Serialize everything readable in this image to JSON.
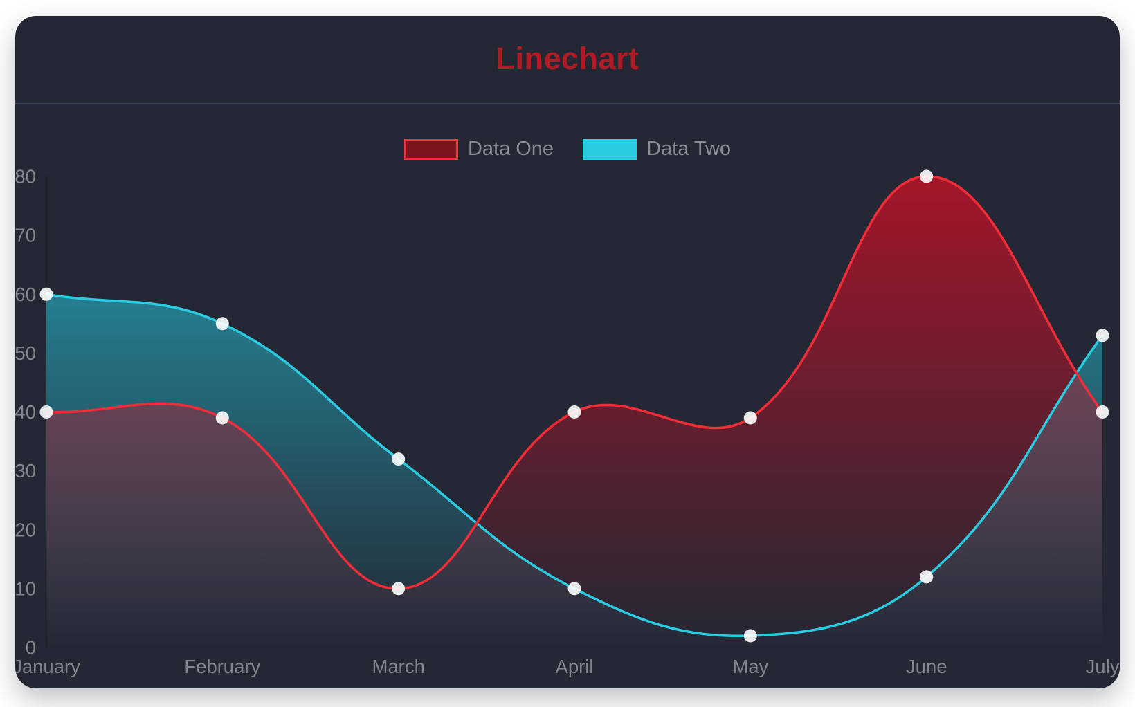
{
  "page": {
    "background": "#ffffff"
  },
  "card": {
    "background": "#232834",
    "divider_color": "#3c4257"
  },
  "title": {
    "text": "Linechart",
    "color": "#b01c25"
  },
  "legend": [
    {
      "label": "Data One",
      "swatch_fill": "#7c151d",
      "swatch_border": "#f23540"
    },
    {
      "label": "Data Two",
      "swatch_fill": "#2bcce2",
      "swatch_border": "#2bcce2"
    }
  ],
  "chart_data": {
    "type": "line",
    "title": "Linechart",
    "categories": [
      "January",
      "February",
      "March",
      "April",
      "May",
      "June",
      "July"
    ],
    "series": [
      {
        "name": "Data One",
        "values": [
          40,
          39,
          10,
          40,
          39,
          80,
          40
        ],
        "line_color": "#f22d38",
        "fill_top": "rgba(200, 16, 38, 0.78)",
        "fill_bottom": "rgba(200, 16, 38, 0)"
      },
      {
        "name": "Data Two",
        "values": [
          60,
          55,
          32,
          10,
          2,
          12,
          53
        ],
        "line_color": "#2bcce2",
        "fill_top": "rgba(38, 200, 222, 0.72)",
        "fill_bottom": "rgba(38, 200, 222, 0)"
      }
    ],
    "xlabel": "",
    "ylabel": "",
    "ylim": [
      0,
      80
    ],
    "y_ticks": [
      0,
      10,
      20,
      30,
      40,
      50,
      60,
      70,
      80
    ],
    "grid": false,
    "legend_position": "top",
    "curve_tension": 0.4,
    "point_color": "rgba(255,255,255,0.9)",
    "point_radius": 9.5,
    "line_width": 3.5,
    "axis_label_color": "#83868d",
    "axis_line_color": "#1a1f2a"
  }
}
